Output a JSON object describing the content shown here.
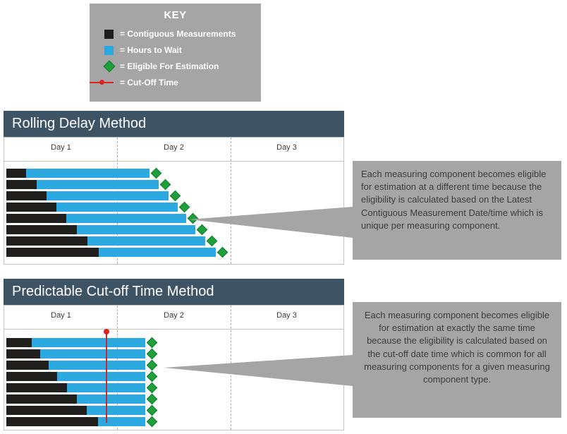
{
  "key": {
    "title": "KEY",
    "items": [
      {
        "label": "= Contiguous Measurements"
      },
      {
        "label": "= Hours to Wait"
      },
      {
        "label": "= Eligible For Estimation"
      },
      {
        "label": "= Cut-Off Time"
      }
    ]
  },
  "sections": [
    {
      "title": "Rolling Delay Method",
      "days": [
        "Day 1",
        "Day 2",
        "Day 3"
      ],
      "callout": "Each measuring component becomes eligible for estimation at a different time because the eligibility is calculated based on the Latest Contiguous Measurement Date/time which is unique per measuring component.",
      "bars": [
        {
          "black": 28,
          "blue": 175
        },
        {
          "black": 43,
          "blue": 173
        },
        {
          "black": 57,
          "blue": 173
        },
        {
          "black": 71,
          "blue": 172
        },
        {
          "black": 85,
          "blue": 170
        },
        {
          "black": 100,
          "blue": 168
        },
        {
          "black": 115,
          "blue": 167
        },
        {
          "black": 131,
          "blue": 166
        }
      ]
    },
    {
      "title": "Predictable Cut-off Time Method",
      "days": [
        "Day 1",
        "Day 2",
        "Day 3"
      ],
      "callout": "Each measuring component becomes eligible for estimation at exactly the same time because the eligibility is calculated based on the cut-off date time which is common for all measuring components for a given measuring component type.",
      "bars": [
        {
          "black": 36,
          "blue": 161
        },
        {
          "black": 48,
          "blue": 149
        },
        {
          "black": 60,
          "blue": 137
        },
        {
          "black": 72,
          "blue": 125
        },
        {
          "black": 86,
          "blue": 111
        },
        {
          "black": 100,
          "blue": 97
        },
        {
          "black": 114,
          "blue": 83
        },
        {
          "black": 130,
          "blue": 67
        }
      ]
    }
  ],
  "colors": {
    "header_bg": "#3E5363",
    "panel_gray": "#A5A5A5",
    "bar_blue": "#2BA9E0",
    "bar_black": "#211E1E",
    "diamond_green": "#1FA03C",
    "cutoff_red": "#E01F1F"
  }
}
